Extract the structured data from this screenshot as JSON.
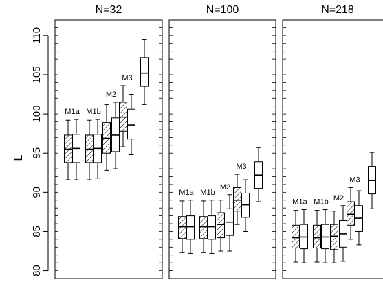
{
  "chart_data": {
    "type": "boxplot",
    "ylabel": "L",
    "ylim": [
      79,
      112
    ],
    "yticks": [
      80,
      85,
      90,
      95,
      100,
      105,
      110
    ],
    "panels": [
      {
        "title": "N=32",
        "groups": [
          {
            "label": "M1a",
            "boxes": [
              {
                "pattern": "hatched",
                "min": 91.6,
                "q1": 93.8,
                "median": 95.5,
                "q3": 97.3,
                "max": 99.2
              },
              {
                "pattern": "plain",
                "min": 91.6,
                "q1": 93.8,
                "median": 95.6,
                "q3": 97.4,
                "max": 99.3
              }
            ]
          },
          {
            "label": "M1b",
            "boxes": [
              {
                "pattern": "hatched",
                "min": 91.6,
                "q1": 93.8,
                "median": 95.5,
                "q3": 97.3,
                "max": 99.2
              },
              {
                "pattern": "plain",
                "min": 91.8,
                "q1": 93.8,
                "median": 95.6,
                "q3": 97.4,
                "max": 99.3
              }
            ]
          },
          {
            "label": "M2",
            "boxes": [
              {
                "pattern": "hatched",
                "min": 92.8,
                "q1": 95.0,
                "median": 96.9,
                "q3": 98.9,
                "max": 101.2
              },
              {
                "pattern": "plain",
                "min": 93.0,
                "q1": 95.2,
                "median": 97.3,
                "q3": 99.5,
                "max": 101.5
              }
            ]
          },
          {
            "label": "M3",
            "boxes": [
              {
                "pattern": "hatched",
                "min": 95.8,
                "q1": 97.8,
                "median": 99.6,
                "q3": 101.5,
                "max": 103.6
              },
              {
                "pattern": "plain",
                "min": 94.8,
                "q1": 96.8,
                "median": 98.6,
                "q3": 100.6,
                "max": 102.5
              },
              {
                "pattern": "plain",
                "min": 101.2,
                "q1": 103.5,
                "median": 105.2,
                "q3": 107.2,
                "max": 109.5
              }
            ]
          }
        ]
      },
      {
        "title": "N=100",
        "groups": [
          {
            "label": "M1a",
            "boxes": [
              {
                "pattern": "hatched",
                "min": 82.3,
                "q1": 84.1,
                "median": 85.6,
                "q3": 86.9,
                "max": 88.9
              },
              {
                "pattern": "plain",
                "min": 82.2,
                "q1": 84.0,
                "median": 85.6,
                "q3": 87.0,
                "max": 89.0
              }
            ]
          },
          {
            "label": "M1b",
            "boxes": [
              {
                "pattern": "hatched",
                "min": 82.3,
                "q1": 84.1,
                "median": 85.6,
                "q3": 86.9,
                "max": 88.9
              },
              {
                "pattern": "plain",
                "min": 82.2,
                "q1": 84.0,
                "median": 85.6,
                "q3": 87.0,
                "max": 89.0
              }
            ]
          },
          {
            "label": "M2",
            "boxes": [
              {
                "pattern": "hatched",
                "min": 82.5,
                "q1": 84.2,
                "median": 85.9,
                "q3": 87.4,
                "max": 89.0
              },
              {
                "pattern": "plain",
                "min": 82.5,
                "q1": 84.5,
                "median": 86.2,
                "q3": 87.9,
                "max": 89.7
              }
            ]
          },
          {
            "label": "M3",
            "boxes": [
              {
                "pattern": "hatched",
                "min": 85.9,
                "q1": 87.6,
                "median": 89.0,
                "q3": 90.6,
                "max": 92.3
              },
              {
                "pattern": "plain",
                "min": 85.0,
                "q1": 86.8,
                "median": 88.4,
                "q3": 89.9,
                "max": 91.6
              },
              {
                "pattern": "plain",
                "min": 88.8,
                "q1": 90.5,
                "median": 92.2,
                "q3": 93.9,
                "max": 95.7
              }
            ]
          }
        ]
      },
      {
        "title": "N=218",
        "groups": [
          {
            "label": "M1a",
            "boxes": [
              {
                "pattern": "hatched",
                "min": 81.1,
                "q1": 82.9,
                "median": 84.2,
                "q3": 85.8,
                "max": 87.7
              },
              {
                "pattern": "plain",
                "min": 81.0,
                "q1": 82.8,
                "median": 84.3,
                "q3": 85.9,
                "max": 87.8
              }
            ]
          },
          {
            "label": "M1b",
            "boxes": [
              {
                "pattern": "hatched",
                "min": 81.1,
                "q1": 82.9,
                "median": 84.2,
                "q3": 85.8,
                "max": 87.7
              },
              {
                "pattern": "plain",
                "min": 81.0,
                "q1": 82.8,
                "median": 84.3,
                "q3": 85.9,
                "max": 87.8
              }
            ]
          },
          {
            "label": "M2",
            "boxes": [
              {
                "pattern": "hatched",
                "min": 81.0,
                "q1": 82.7,
                "median": 84.4,
                "q3": 85.9,
                "max": 87.6
              },
              {
                "pattern": "plain",
                "min": 81.2,
                "q1": 83.0,
                "median": 84.7,
                "q3": 86.4,
                "max": 88.3
              }
            ]
          },
          {
            "label": "M3",
            "boxes": [
              {
                "pattern": "hatched",
                "min": 84.0,
                "q1": 85.8,
                "median": 87.2,
                "q3": 88.8,
                "max": 90.6
              },
              {
                "pattern": "plain",
                "min": 83.3,
                "q1": 85.0,
                "median": 86.7,
                "q3": 88.3,
                "max": 90.2
              },
              {
                "pattern": "plain",
                "min": 87.9,
                "q1": 89.8,
                "median": 91.5,
                "q3": 93.3,
                "max": 95.1
              }
            ]
          }
        ]
      }
    ]
  }
}
